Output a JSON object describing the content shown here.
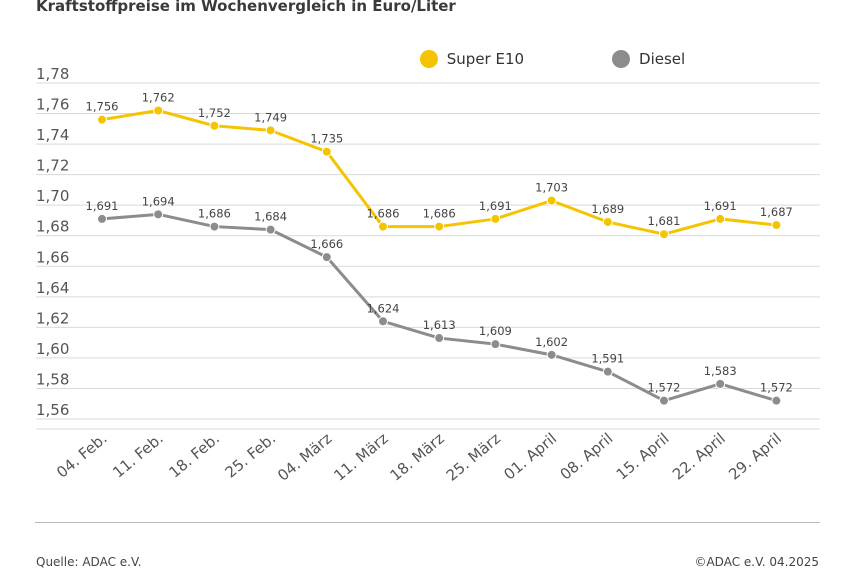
{
  "title": "Kraftstoffpreise im Wochenvergleich in Euro/Liter",
  "footer": {
    "source": "Quelle: ADAC e.V.",
    "copyright": "©ADAC e.V. 04.2025"
  },
  "colors": {
    "super": "#f5c400",
    "diesel": "#8c8c8c",
    "grid": "#d9d9d9",
    "axis": "#555555"
  },
  "chart_data": {
    "type": "line",
    "title": "Kraftstoffpreise im Wochenvergleich in Euro/Liter",
    "xlabel": "",
    "ylabel": "",
    "categories": [
      "04. Feb.",
      "11. Feb.",
      "18. Feb.",
      "25. Feb.",
      "04. März",
      "11. März",
      "18. März",
      "25. März",
      "01. April",
      "08. April",
      "15. April",
      "22. April",
      "29. April"
    ],
    "ylim": [
      1.55,
      1.78
    ],
    "yticks": [
      "1,78",
      "1,76",
      "1,74",
      "1,72",
      "1,70",
      "1,68",
      "1,66",
      "1,64",
      "1,62",
      "1,60",
      "1,58",
      "1,56"
    ],
    "ytick_values": [
      1.78,
      1.76,
      1.74,
      1.72,
      1.7,
      1.68,
      1.66,
      1.64,
      1.62,
      1.6,
      1.58,
      1.56
    ],
    "grid": true,
    "legend_position": "top-center",
    "series": [
      {
        "name": "Super E10",
        "color": "#f5c400",
        "values": [
          1.756,
          1.762,
          1.752,
          1.749,
          1.735,
          1.686,
          1.686,
          1.691,
          1.703,
          1.689,
          1.681,
          1.691,
          1.687
        ],
        "labels": [
          "1,756",
          "1,762",
          "1,752",
          "1,749",
          "1,735",
          "1,686",
          "1,686",
          "1,691",
          "1,703",
          "1,689",
          "1,681",
          "1,691",
          "1,687"
        ]
      },
      {
        "name": "Diesel",
        "color": "#8c8c8c",
        "values": [
          1.691,
          1.694,
          1.686,
          1.684,
          1.666,
          1.624,
          1.613,
          1.609,
          1.602,
          1.591,
          1.572,
          1.583,
          1.572
        ],
        "labels": [
          "1,691",
          "1,694",
          "1,686",
          "1,684",
          "1,666",
          "1,624",
          "1,613",
          "1,609",
          "1,602",
          "1,591",
          "1,572",
          "1,583",
          "1,572"
        ]
      }
    ]
  }
}
